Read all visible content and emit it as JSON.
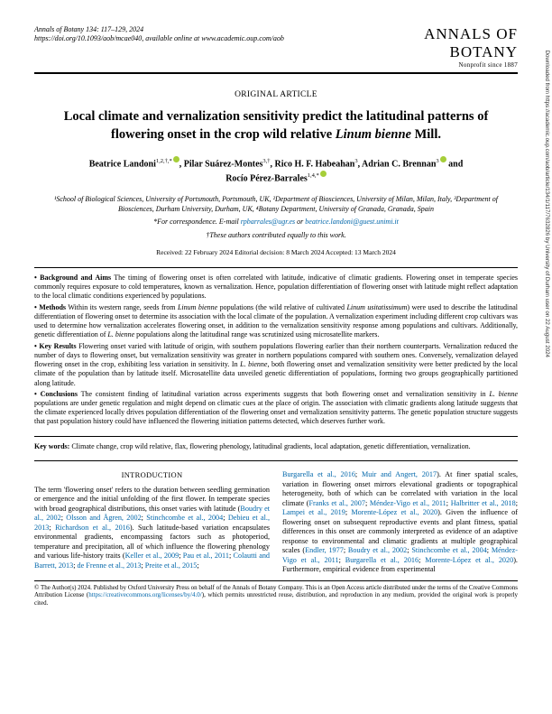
{
  "header": {
    "journal_line": "Annals of Botany 134: 117–129, 2024",
    "doi_line": "https://doi.org/10.1093/aob/mcae040, available online at www.academic.oup.com/aob",
    "logo_top": "ANNALS OF",
    "logo_bottom": "BOTANY",
    "logo_tag": "Nonprofit since 1887"
  },
  "article": {
    "type": "ORIGINAL ARTICLE",
    "title_a": "Local climate and vernalization sensitivity predict the latitudinal patterns of flowering onset in the crop wild relative ",
    "title_b": "Linum bienne",
    "title_c": " Mill."
  },
  "authors": {
    "line1": "Beatrice Landoni",
    "sup1": "1,2,†,*",
    "a2": ", Pilar Suárez-Montes",
    "sup2": "3,†",
    "a3": ", Rico H. F. Habeahan",
    "sup3": "3",
    "a4": ", Adrian C. Brennan",
    "sup4": "3",
    "line2_pre": " and",
    "line2": "Rocío Pérez-Barrales",
    "sup5": "1,4,*"
  },
  "affil": {
    "text": "¹School of Biological Sciences, University of Portsmouth, Portsmouth, UK, ²Department of Biosciences, University of Milan, Milan, Italy, ³Department of Biosciences, Durham University, Durham, UK, ⁴Botany Department, University of Granada, Granada, Spain",
    "corr_label": "*For correspondence. E-mail ",
    "email1": "rpbarrales@ugr.es",
    "or": " or ",
    "email2": "beatrice.landoni@guest.unimi.it",
    "equal": "†These authors contributed equally to this work."
  },
  "dates": "Received: 22 February 2024    Editorial decision: 8 March 2024    Accepted: 13 March 2024",
  "abstract": {
    "bg_label": "Background and Aims",
    "bg_text": " The timing of flowering onset is often correlated with latitude, indicative of climatic gradients. Flowering onset in temperate species commonly requires exposure to cold temperatures, known as vernalization. Hence, population differentiation of flowering onset with latitude might reflect adaptation to the local climatic conditions experienced by populations.",
    "m_label": "Methods",
    "m_text_a": " Within its western range, seeds from ",
    "m_ital1": "Linum bienne",
    "m_text_b": " populations (the wild relative of cultivated ",
    "m_ital2": "Linum usitatissimum",
    "m_text_c": ") were used to describe the latitudinal differentiation of flowering onset to determine its association with the local climate of the population. A vernalization experiment including different crop cultivars was used to determine how vernalization accelerates flowering onset, in addition to the vernalization sensitivity response among populations and cultivars. Additionally, genetic differentiation of ",
    "m_ital3": "L. bienne",
    "m_text_d": " populations along the latitudinal range was scrutinized using microsatellite markers.",
    "kr_label": "Key Results",
    "kr_text_a": " Flowering onset varied with latitude of origin, with southern populations flowering earlier than their northern counterparts. Vernalization reduced the number of days to flowering onset, but vernalization sensitivity was greater in northern populations compared with southern ones. Conversely, vernalization delayed flowering onset in the crop, exhibiting less variation in sensitivity. In ",
    "kr_ital1": "L. bienne",
    "kr_text_b": ", both flowering onset and vernalization sensitivity were better predicted by the local climate of the population than by latitude itself. Microsatellite data unveiled genetic differentiation of populations, forming two groups geographically partitioned along latitude.",
    "c_label": "Conclusions",
    "c_text_a": " The consistent finding of latitudinal variation across experiments suggests that both flowering onset and vernalization sensitivity in ",
    "c_ital1": "L. bienne",
    "c_text_b": " populations are under genetic regulation and might depend on climatic cues at the place of origin. The association with climatic gradients along latitude suggests that the climate experienced locally drives population differentiation of the flowering onset and vernalization sensitivity patterns. The genetic population structure suggests that past population history could have influenced the flowering initiation patterns detected, which deserves further work."
  },
  "keywords": {
    "label": "Key words:",
    "text": " Climate change, crop wild relative, flax, flowering phenology, latitudinal gradients, local adaptation, genetic differentiation, vernalization."
  },
  "intro": {
    "heading": "INTRODUCTION",
    "col1_a": "The term 'flowering onset' refers to the duration between seedling germination or emergence and the initial unfolding of the first flower. In temperate species with broad geographical distributions, this onset varies with latitude (",
    "col1_ref1": "Boudry et al., 2002",
    "col1_b": "; ",
    "col1_ref2": "Olsson and Ågren, 2002",
    "col1_c": "; ",
    "col1_ref3": "Stinchcombe et al., 2004",
    "col1_d": "; ",
    "col1_ref4": "Debieu et al., 2013",
    "col1_e": "; ",
    "col1_ref5": "Richardson et al., 2016",
    "col1_f": "). Such latitude-based variation encapsulates environmental gradients, encompassing factors such as photoperiod, temperature and precipitation, all of which influence the flowering phenology and various life-history traits (",
    "col1_ref6": "Keller et al., 2009",
    "col1_g": "; ",
    "col1_ref7": "Pau et al., 2011",
    "col1_h": "; ",
    "col1_ref8": "Colautti and Barrett, 2013",
    "col1_i": "; ",
    "col1_ref9": "de Frenne et al., 2013",
    "col1_j": "; ",
    "col1_ref10": "Preite et al., 2015",
    "col1_k": ";",
    "col2_ref1": "Burgarella et al., 2016",
    "col2_a": "; ",
    "col2_ref2": "Muir and Angert, 2017",
    "col2_b": "). At finer spatial scales, variation in flowering onset mirrors elevational gradients or topographical heterogeneity, both of which can be correlated with variation in the local climate (",
    "col2_ref3": "Franks et al., 2007",
    "col2_c": "; ",
    "col2_ref4": "Méndez-Vigo et al., 2011",
    "col2_d": "; ",
    "col2_ref5": "Halbritter et al., 2018",
    "col2_e": "; ",
    "col2_ref6": "Lampei et al., 2019",
    "col2_f": "; ",
    "col2_ref7": "Morente-López et al., 2020",
    "col2_g": "). Given the influence of flowering onset on subsequent reproductive events and plant fitness, spatial differences in this onset are commonly interpreted as evidence of an adaptive response to environmental and climatic gradients at multiple geographical scales (",
    "col2_ref8": "Endler, 1977",
    "col2_h": "; ",
    "col2_ref9": "Boudry et al., 2002",
    "col2_i": "; ",
    "col2_ref10": "Stinchcombe et al., 2004",
    "col2_j": "; ",
    "col2_ref11": "Méndez-Vigo et al., 2011",
    "col2_k": "; ",
    "col2_ref12": "Burgarella et al., 2016",
    "col2_l": "; ",
    "col2_ref13": "Morente-López et al., 2020",
    "col2_m": "). Furthermore, empirical evidence from experimental"
  },
  "footer": {
    "text_a": "© The Author(s) 2024. Published by Oxford University Press on behalf of the Annals of Botany Company. This is an Open Access article distributed under the terms of the Creative Commons Attribution License (",
    "link": "https://creativecommons.org/licenses/by/4.0/",
    "text_b": "), which permits unrestricted reuse, distribution, and reproduction in any medium, provided the original work is properly cited."
  },
  "side": "Downloaded from https://academic.oup.com/aob/article/134/1/117/7632826 by University of Durham user on 22 August 2024"
}
